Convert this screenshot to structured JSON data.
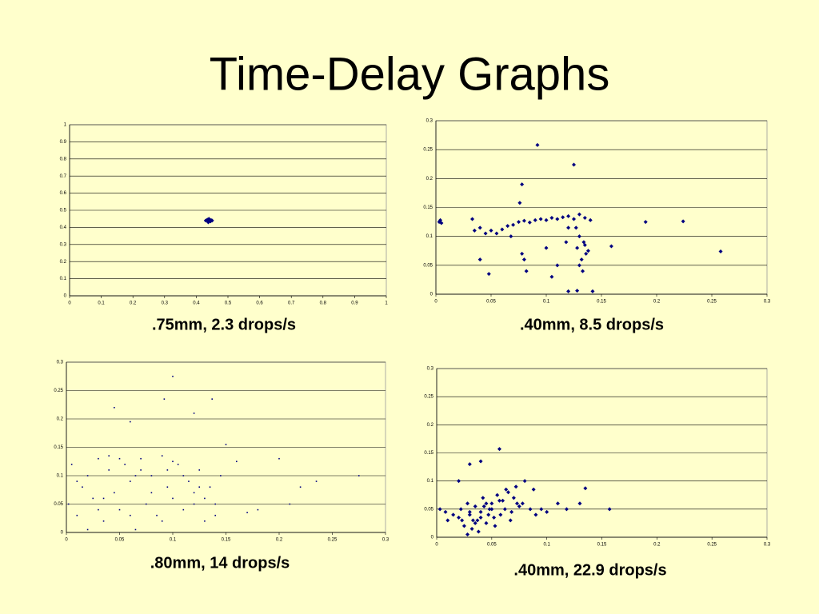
{
  "title": "Time-Delay Graphs",
  "chart_data": [
    {
      "type": "scatter",
      "caption": ".75mm, 2.3 drops/s",
      "marker": "diamond",
      "color": "#000080",
      "grid": true,
      "xlim": [
        0,
        1
      ],
      "ylim": [
        0,
        1
      ],
      "xticks": [
        0,
        0.1,
        0.2,
        0.3,
        0.4,
        0.5,
        0.6,
        0.7,
        0.8,
        0.9,
        1
      ],
      "yticks": [
        0,
        0.1,
        0.2,
        0.3,
        0.4,
        0.5,
        0.6,
        0.7,
        0.8,
        0.9,
        1
      ],
      "x": [
        0.43,
        0.435,
        0.44,
        0.445,
        0.45,
        0.44,
        0.438,
        0.442,
        0.447,
        0.436
      ],
      "values": [
        0.44,
        0.445,
        0.44,
        0.435,
        0.44,
        0.45,
        0.43,
        0.438,
        0.442,
        0.44
      ]
    },
    {
      "type": "scatter",
      "caption": ".40mm, 8.5 drops/s",
      "marker": "diamond",
      "color": "#000080",
      "grid": true,
      "xlim": [
        0,
        0.3
      ],
      "ylim": [
        0,
        0.3
      ],
      "xticks": [
        0,
        0.05,
        0.1,
        0.15,
        0.2,
        0.25,
        0.3
      ],
      "yticks": [
        0,
        0.05,
        0.1,
        0.15,
        0.2,
        0.25,
        0.3
      ],
      "x": [
        0.003,
        0.004,
        0.005,
        0.033,
        0.035,
        0.04,
        0.045,
        0.05,
        0.055,
        0.06,
        0.065,
        0.07,
        0.075,
        0.08,
        0.085,
        0.09,
        0.095,
        0.1,
        0.105,
        0.11,
        0.115,
        0.12,
        0.125,
        0.13,
        0.135,
        0.14,
        0.128,
        0.13,
        0.132,
        0.134,
        0.136,
        0.13,
        0.127,
        0.133,
        0.135,
        0.138,
        0.092,
        0.125,
        0.078,
        0.076,
        0.19,
        0.224,
        0.258,
        0.159,
        0.08,
        0.082,
        0.078,
        0.11,
        0.1,
        0.12,
        0.128,
        0.142,
        0.048,
        0.04,
        0.105,
        0.118,
        0.12,
        0.068
      ],
      "values": [
        0.125,
        0.128,
        0.123,
        0.13,
        0.11,
        0.115,
        0.105,
        0.11,
        0.105,
        0.112,
        0.118,
        0.12,
        0.125,
        0.127,
        0.124,
        0.128,
        0.13,
        0.128,
        0.132,
        0.13,
        0.133,
        0.135,
        0.13,
        0.138,
        0.132,
        0.128,
        0.08,
        0.1,
        0.06,
        0.09,
        0.07,
        0.05,
        0.115,
        0.04,
        0.085,
        0.075,
        0.258,
        0.224,
        0.19,
        0.158,
        0.125,
        0.126,
        0.074,
        0.083,
        0.06,
        0.04,
        0.07,
        0.05,
        0.08,
        0.005,
        0.006,
        0.005,
        0.035,
        0.06,
        0.03,
        0.09,
        0.115,
        0.1
      ]
    },
    {
      "type": "scatter",
      "caption": ".80mm, 14 drops/s",
      "marker": "dot",
      "color": "#000080",
      "grid": true,
      "xlim": [
        0,
        0.3
      ],
      "ylim": [
        0,
        0.3
      ],
      "xticks": [
        0,
        0.05,
        0.1,
        0.15,
        0.2,
        0.25,
        0.3
      ],
      "yticks": [
        0,
        0.05,
        0.1,
        0.15,
        0.2,
        0.25,
        0.3
      ],
      "x": [
        0.002,
        0.005,
        0.01,
        0.015,
        0.02,
        0.025,
        0.03,
        0.035,
        0.04,
        0.045,
        0.05,
        0.055,
        0.06,
        0.065,
        0.07,
        0.075,
        0.08,
        0.085,
        0.09,
        0.095,
        0.1,
        0.105,
        0.11,
        0.115,
        0.12,
        0.125,
        0.13,
        0.135,
        0.14,
        0.145,
        0.01,
        0.03,
        0.05,
        0.07,
        0.09,
        0.11,
        0.13,
        0.02,
        0.04,
        0.06,
        0.08,
        0.1,
        0.12,
        0.14,
        0.035,
        0.065,
        0.095,
        0.125,
        0.1,
        0.092,
        0.137,
        0.12,
        0.045,
        0.16,
        0.2,
        0.22,
        0.235,
        0.275,
        0.18,
        0.21,
        0.17,
        0.15,
        0.06
      ],
      "values": [
        0.05,
        0.12,
        0.03,
        0.08,
        0.1,
        0.06,
        0.13,
        0.02,
        0.11,
        0.07,
        0.04,
        0.12,
        0.09,
        0.005,
        0.13,
        0.05,
        0.1,
        0.03,
        0.135,
        0.08,
        0.06,
        0.12,
        0.04,
        0.09,
        0.07,
        0.11,
        0.02,
        0.08,
        0.05,
        0.1,
        0.09,
        0.04,
        0.13,
        0.11,
        0.02,
        0.1,
        0.06,
        0.005,
        0.135,
        0.03,
        0.07,
        0.125,
        0.05,
        0.03,
        0.06,
        0.1,
        0.11,
        0.08,
        0.275,
        0.235,
        0.235,
        0.21,
        0.22,
        0.125,
        0.13,
        0.08,
        0.09,
        0.1,
        0.04,
        0.05,
        0.035,
        0.155,
        0.195
      ]
    },
    {
      "type": "scatter",
      "caption": ".40mm, 22.9 drops/s",
      "marker": "diamond",
      "color": "#000080",
      "grid": true,
      "xlim": [
        0,
        0.3
      ],
      "ylim": [
        0,
        0.3
      ],
      "xticks": [
        0,
        0.05,
        0.1,
        0.15,
        0.2,
        0.25,
        0.3
      ],
      "yticks": [
        0,
        0.05,
        0.1,
        0.15,
        0.2,
        0.25,
        0.3
      ],
      "x": [
        0.003,
        0.008,
        0.01,
        0.015,
        0.02,
        0.022,
        0.025,
        0.028,
        0.03,
        0.032,
        0.035,
        0.037,
        0.04,
        0.042,
        0.045,
        0.048,
        0.05,
        0.052,
        0.055,
        0.058,
        0.06,
        0.062,
        0.065,
        0.068,
        0.07,
        0.072,
        0.075,
        0.078,
        0.08,
        0.085,
        0.088,
        0.09,
        0.095,
        0.1,
        0.028,
        0.033,
        0.038,
        0.043,
        0.047,
        0.053,
        0.057,
        0.063,
        0.067,
        0.073,
        0.04,
        0.03,
        0.05,
        0.023,
        0.035,
        0.045,
        0.03,
        0.04,
        0.057,
        0.157,
        0.13,
        0.135,
        0.118,
        0.11,
        0.02
      ],
      "values": [
        0.05,
        0.045,
        0.03,
        0.04,
        0.035,
        0.05,
        0.02,
        0.06,
        0.04,
        0.015,
        0.055,
        0.03,
        0.045,
        0.07,
        0.025,
        0.05,
        0.06,
        0.035,
        0.075,
        0.04,
        0.065,
        0.05,
        0.08,
        0.045,
        0.07,
        0.09,
        0.055,
        0.06,
        0.1,
        0.05,
        0.085,
        0.04,
        0.05,
        0.045,
        0.005,
        0.03,
        0.01,
        0.055,
        0.04,
        0.02,
        0.065,
        0.085,
        0.03,
        0.06,
        0.035,
        0.045,
        0.05,
        0.03,
        0.025,
        0.06,
        0.13,
        0.135,
        0.157,
        0.05,
        0.06,
        0.087,
        0.05,
        0.06,
        0.1
      ]
    }
  ]
}
